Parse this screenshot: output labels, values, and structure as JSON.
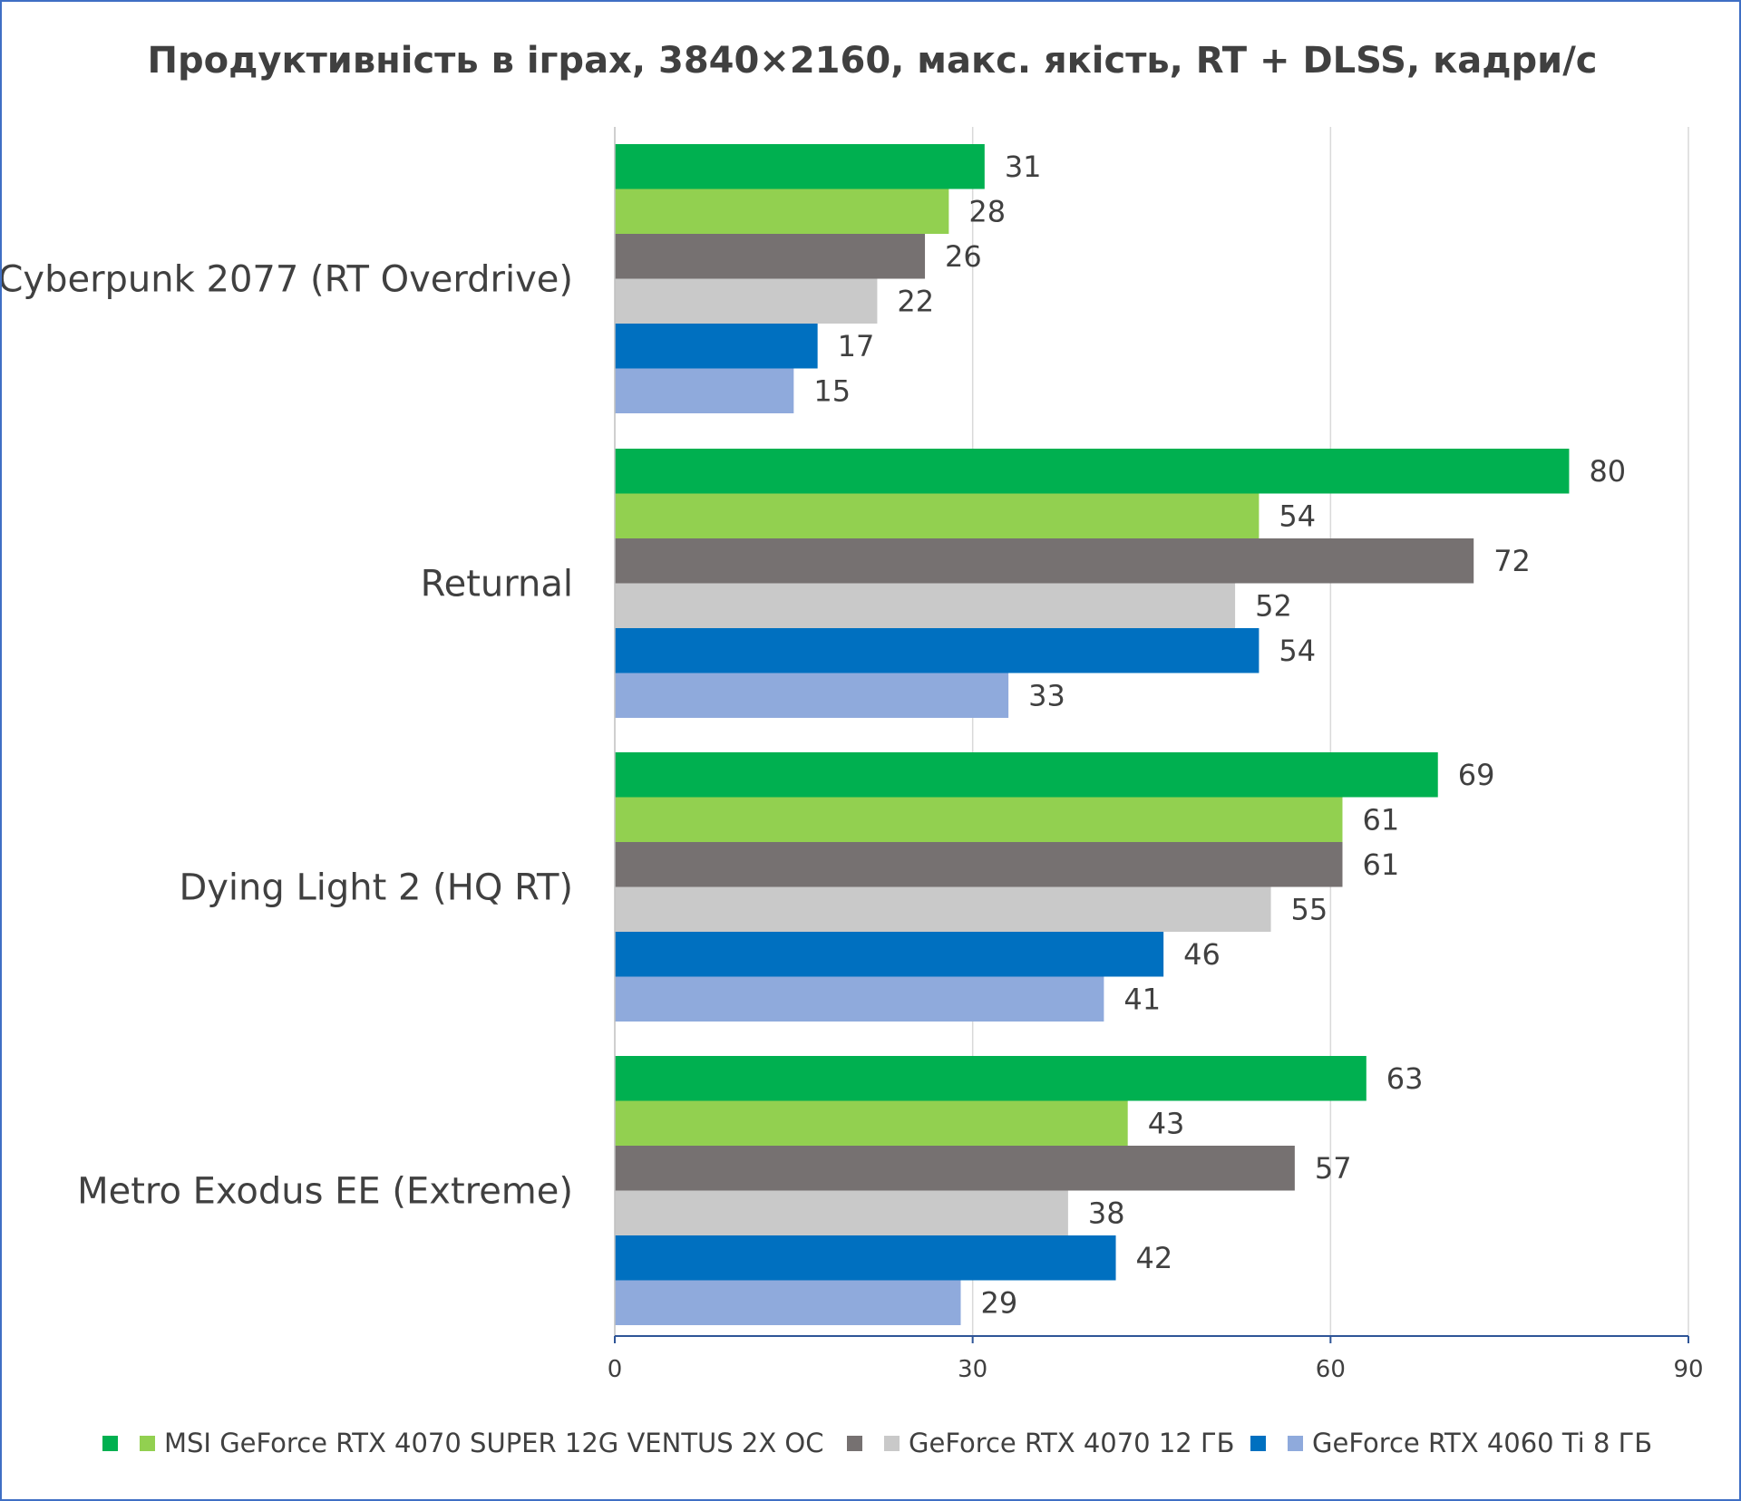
{
  "chart_data": {
    "type": "bar",
    "orientation": "horizontal",
    "title": "Продуктивність в іграх, 3840×2160, макс. якість, RT + DLSS, кадри/с",
    "categories": [
      "Cyberpunk 2077 (RT Overdrive)",
      "Returnal",
      "Dying Light 2 (HQ RT)",
      "Metro Exodus EE (Extreme)"
    ],
    "series": [
      {
        "color": "#00b050",
        "values": [
          31,
          80,
          69,
          63
        ]
      },
      {
        "color": "#92d050",
        "values": [
          28,
          54,
          61,
          43
        ]
      },
      {
        "color": "#767171",
        "values": [
          26,
          72,
          61,
          57
        ]
      },
      {
        "color": "#c9c9c9",
        "values": [
          22,
          52,
          55,
          38
        ]
      },
      {
        "color": "#0070c0",
        "values": [
          17,
          54,
          46,
          42
        ]
      },
      {
        "color": "#8faadc",
        "values": [
          15,
          33,
          41,
          29
        ]
      }
    ],
    "xlim": [
      0,
      90
    ],
    "xticks": [
      0,
      30,
      60,
      90
    ],
    "grid": true,
    "legend_position": "bottom",
    "legend": [
      {
        "label": "",
        "colors": [
          "#00b050"
        ]
      },
      {
        "label": "MSI GeForce RTX 4070 SUPER 12G VENTUS 2X OC",
        "colors": [
          "#92d050"
        ]
      },
      {
        "label": "",
        "colors": [
          "#767171"
        ]
      },
      {
        "label": "GeForce RTX 4070 12 ГБ",
        "colors": [
          "#c9c9c9"
        ]
      },
      {
        "label": "",
        "colors": [
          "#0070c0"
        ]
      },
      {
        "label": "GeForce RTX 4060 Ti 8 ГБ",
        "colors": [
          "#8faadc"
        ]
      }
    ]
  }
}
